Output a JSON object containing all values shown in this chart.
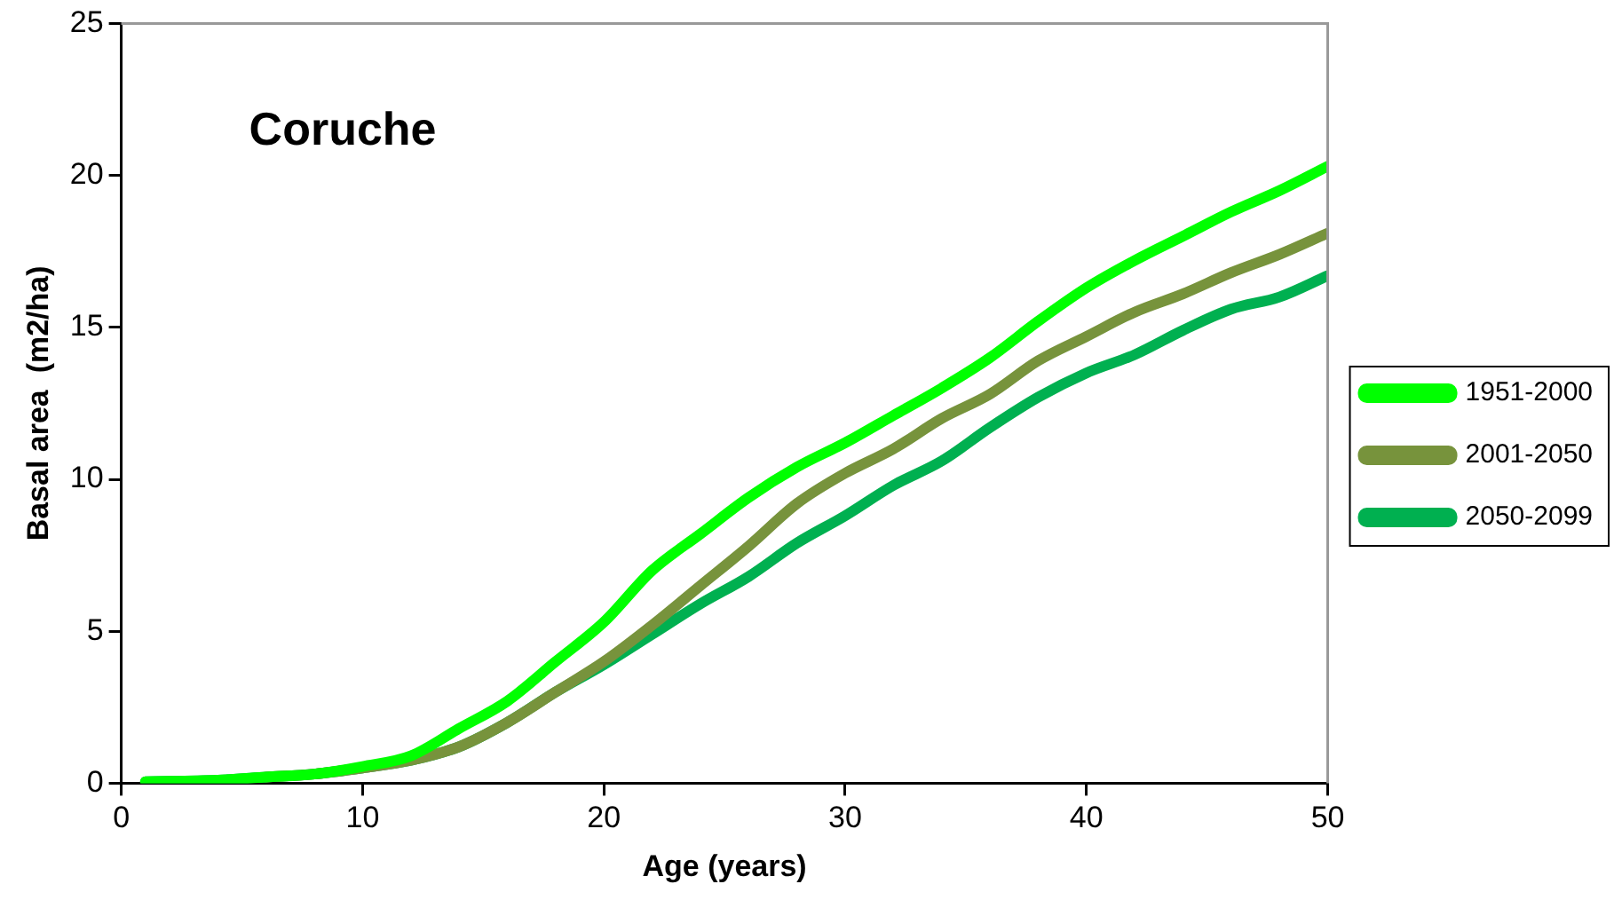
{
  "chart_data": {
    "type": "line",
    "title": "Coruche",
    "xlabel": "Age (years)",
    "ylabel": "Basal area  (m2/ha)",
    "x": [
      1,
      4,
      6,
      8,
      10,
      12,
      14,
      16,
      18,
      20,
      22,
      24,
      26,
      28,
      30,
      32,
      34,
      36,
      38,
      40,
      42,
      44,
      46,
      48,
      50
    ],
    "series": [
      {
        "name": "1951-2000",
        "color": "#00ff00",
        "values": [
          0.05,
          0.1,
          0.2,
          0.3,
          0.55,
          0.9,
          1.8,
          2.7,
          4,
          5.3,
          7,
          8.2,
          9.4,
          10.4,
          11.2,
          12.1,
          13,
          14,
          15.2,
          16.3,
          17.2,
          18,
          18.8,
          19.5,
          20.3
        ]
      },
      {
        "name": "2001-2050",
        "color": "#77933c",
        "values": [
          null,
          null,
          0.2,
          0.3,
          0.5,
          0.75,
          1.2,
          2,
          3,
          4,
          5.2,
          6.5,
          7.8,
          9.2,
          10.2,
          11,
          12,
          12.8,
          13.9,
          14.7,
          15.5,
          16.1,
          16.8,
          17.4,
          18.1
        ]
      },
      {
        "name": "2050-2099",
        "color": "#00b050",
        "values": [
          0.05,
          0.1,
          0.2,
          0.3,
          0.5,
          0.75,
          1.2,
          2,
          3,
          3.9,
          4.9,
          5.9,
          6.8,
          7.9,
          8.8,
          9.8,
          10.6,
          11.7,
          12.7,
          13.5,
          14.1,
          14.9,
          15.6,
          16,
          16.7
        ]
      }
    ],
    "xlim": [
      0,
      50
    ],
    "xticks": [
      0,
      10,
      20,
      30,
      40,
      50
    ],
    "ylim": [
      0,
      25
    ],
    "yticks": [
      0,
      5,
      10,
      15,
      20,
      25
    ],
    "grid": false,
    "legend": "right",
    "marker": "none",
    "line_style": "solid"
  }
}
